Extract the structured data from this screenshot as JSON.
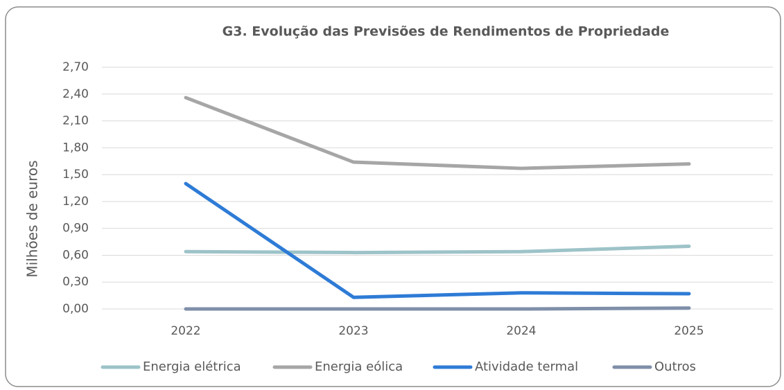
{
  "chart_data": {
    "type": "line",
    "title": "G3. Evolução das Previsões de Rendimentos de Propriedade",
    "y_label": "Milhões de euros",
    "categories": [
      "2022",
      "2023",
      "2024",
      "2025"
    ],
    "series": [
      {
        "name": "Energia elétrica",
        "color": "#9dc3c8",
        "values": [
          0.64,
          0.63,
          0.64,
          0.7
        ]
      },
      {
        "name": "Energia eólica",
        "color": "#a6a6a6",
        "values": [
          2.36,
          1.64,
          1.57,
          1.62
        ]
      },
      {
        "name": "Atividade termal",
        "color": "#2e7bd6",
        "values": [
          1.4,
          0.13,
          0.18,
          0.17
        ]
      },
      {
        "name": "Outros",
        "color": "#7f8fa9",
        "values": [
          0.0,
          0.0,
          0.0,
          0.01
        ]
      }
    ],
    "ylim": [
      0,
      2.7
    ],
    "yticks": [
      {
        "value": 0,
        "label": "0,00"
      },
      {
        "value": 0.3,
        "label": "0,30"
      },
      {
        "value": 0.6,
        "label": "0,60"
      },
      {
        "value": 0.9,
        "label": "0,90"
      },
      {
        "value": 1.2,
        "label": "1,20"
      },
      {
        "value": 1.5,
        "label": "1,50"
      },
      {
        "value": 1.8,
        "label": "1,80"
      },
      {
        "value": 2.1,
        "label": "2,10"
      },
      {
        "value": 2.4,
        "label": "2,40"
      },
      {
        "value": 2.7,
        "label": "2,70"
      }
    ],
    "grid": true,
    "legend": "bottom"
  }
}
